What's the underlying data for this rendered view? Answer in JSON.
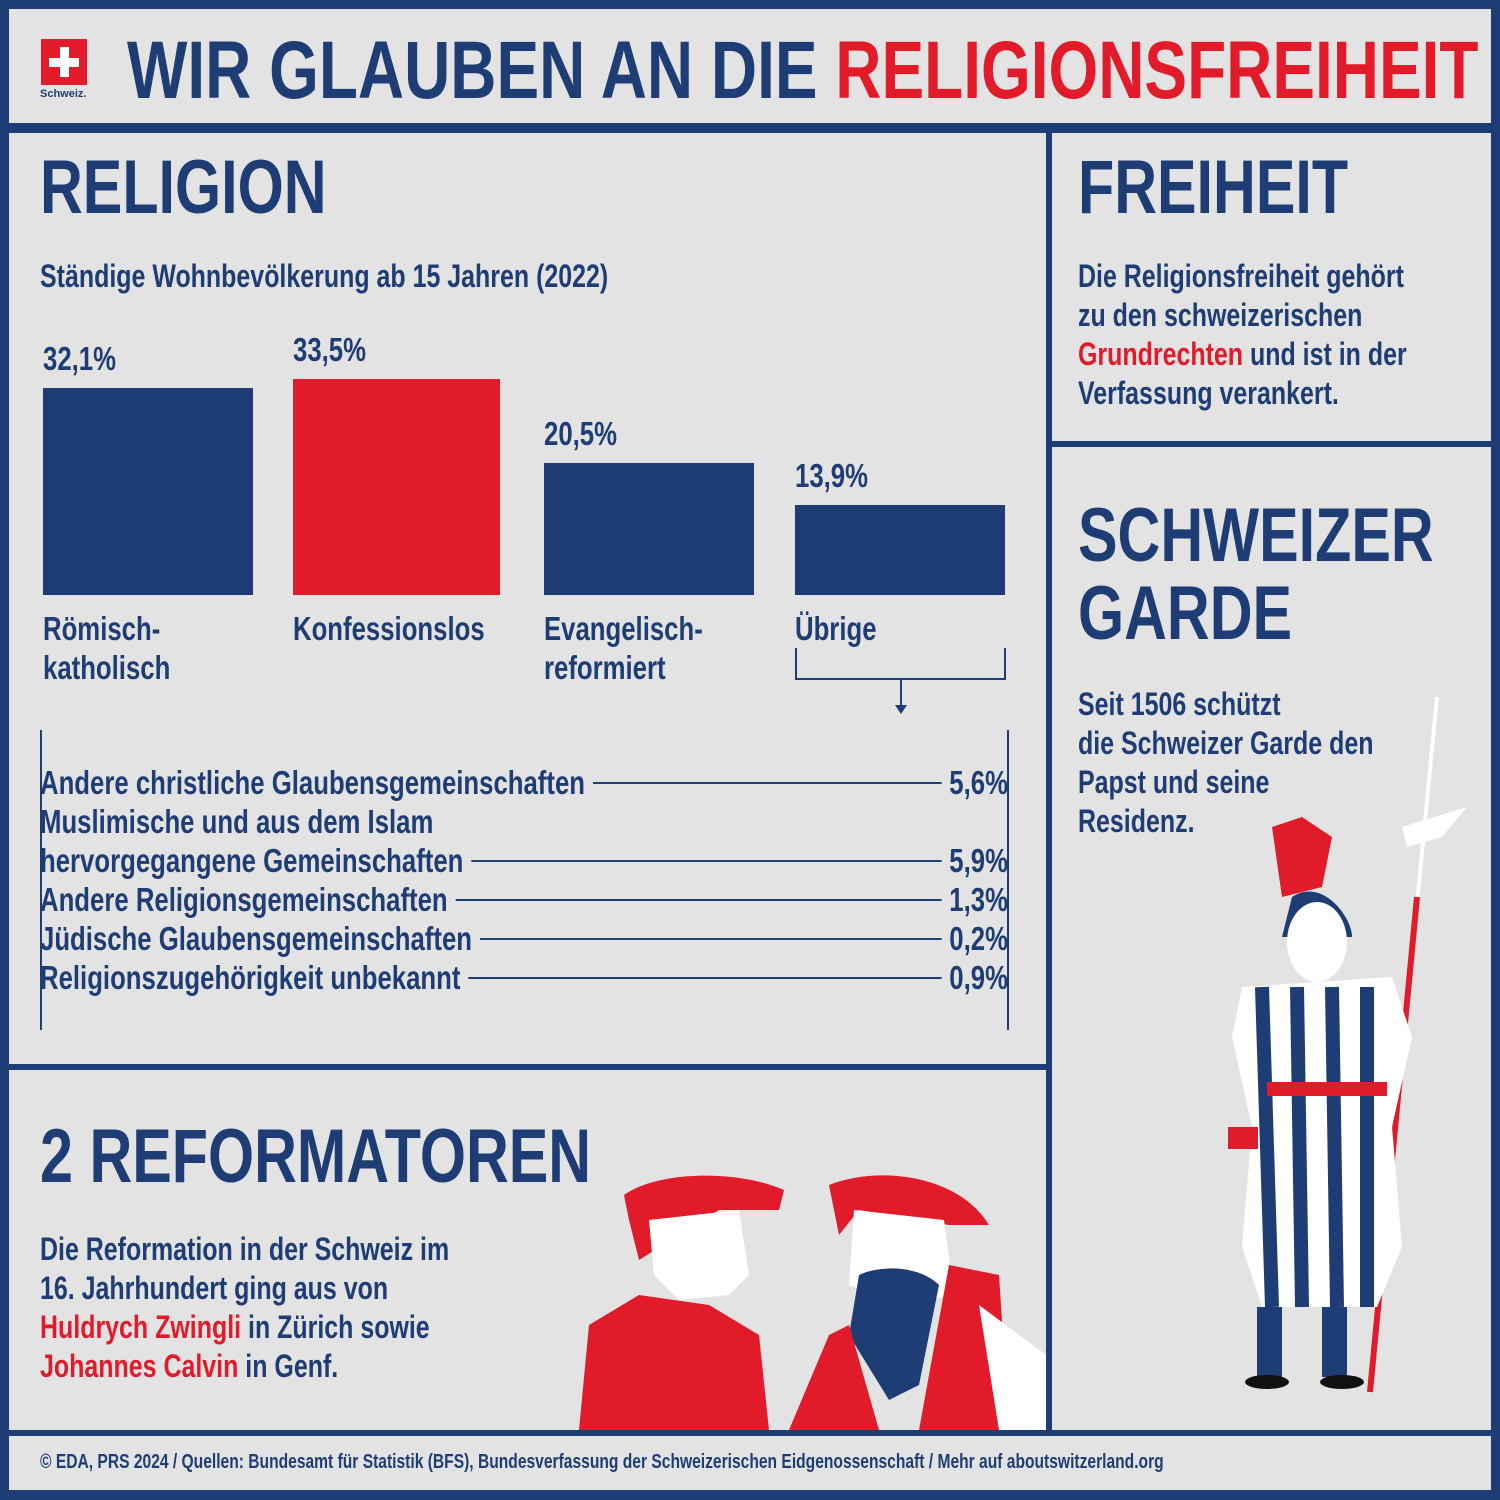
{
  "header": {
    "logo_text": "Schweiz.",
    "title_part1": "WIR GLAUBEN AN DIE ",
    "title_part2": "RELIGIONSFREIHEIT"
  },
  "religion": {
    "heading": "RELIGION",
    "subtitle": "Ständige Wohnbevölkerung ab 15 Jahren (2022)"
  },
  "chart_data": {
    "type": "bar",
    "title": "Ständige Wohnbevölkerung ab 15 Jahren (2022)",
    "categories": [
      "Römisch-\nkatholisch",
      "Konfessionslos",
      "Evangelisch-\nreformiert",
      "Übrige"
    ],
    "category_lines": [
      [
        "Römisch-",
        "katholisch"
      ],
      [
        "Konfessionslos"
      ],
      [
        "Evangelisch-",
        "reformiert"
      ],
      [
        "Übrige"
      ]
    ],
    "values": [
      32.1,
      33.5,
      20.5,
      13.9
    ],
    "labels": [
      "32,1%",
      "33,5%",
      "20,5%",
      "13,9%"
    ],
    "colors": [
      "#1f3d75",
      "#e11b2a",
      "#1f3d75",
      "#1f3d75"
    ],
    "unit": "%",
    "grid": false,
    "breakdown_of": "Übrige",
    "breakdown": [
      {
        "lines": [
          "Andere christliche Glaubensgemeinschaften"
        ],
        "value": 5.6,
        "label": "5,6%"
      },
      {
        "lines": [
          "Muslimische und aus dem Islam",
          "hervorgegangene Gemeinschaften"
        ],
        "value": 5.9,
        "label": "5,9%"
      },
      {
        "lines": [
          "Andere Religionsgemeinschaften"
        ],
        "value": 1.3,
        "label": "1,3%"
      },
      {
        "lines": [
          "Jüdische Glaubensgemeinschaften"
        ],
        "value": 0.2,
        "label": "0,2%"
      },
      {
        "lines": [
          "Religionszugehörigkeit unbekannt"
        ],
        "value": 0.9,
        "label": "0,9%"
      }
    ]
  },
  "freiheit": {
    "heading": "FREIHEIT",
    "line1": "Die Religionsfreiheit gehört",
    "line2": "zu den schweizerischen",
    "line3_red": "Grundrechten",
    "line3_rest": " und ist in der",
    "line4": "Verfassung verankert."
  },
  "garde": {
    "heading1": "SCHWEIZER",
    "heading2": "GARDE",
    "line1": "Seit 1506 schützt",
    "line2": "die Schweizer Garde den",
    "line3": "Papst und seine",
    "line4": "Residenz."
  },
  "reformatoren": {
    "heading": "2 REFORMATOREN",
    "line1": "Die Reformation in der Schweiz im",
    "line2": "16. Jahrhundert ging aus von",
    "line3_red": "Huldrych Zwingli",
    "line3_rest": " in Zürich sowie",
    "line4_red": "Johannes Calvin",
    "line4_rest": " in Genf."
  },
  "footer": {
    "text": "© EDA, PRS 2024 / Quellen: Bundesamt für Statistik (BFS), Bundesverfassung der Schweizerischen Eidgenossenschaft / Mehr auf aboutswitzerland.org"
  },
  "colors": {
    "navy": "#1f3d75",
    "red": "#e11b2a",
    "background": "#e3e3e3"
  }
}
